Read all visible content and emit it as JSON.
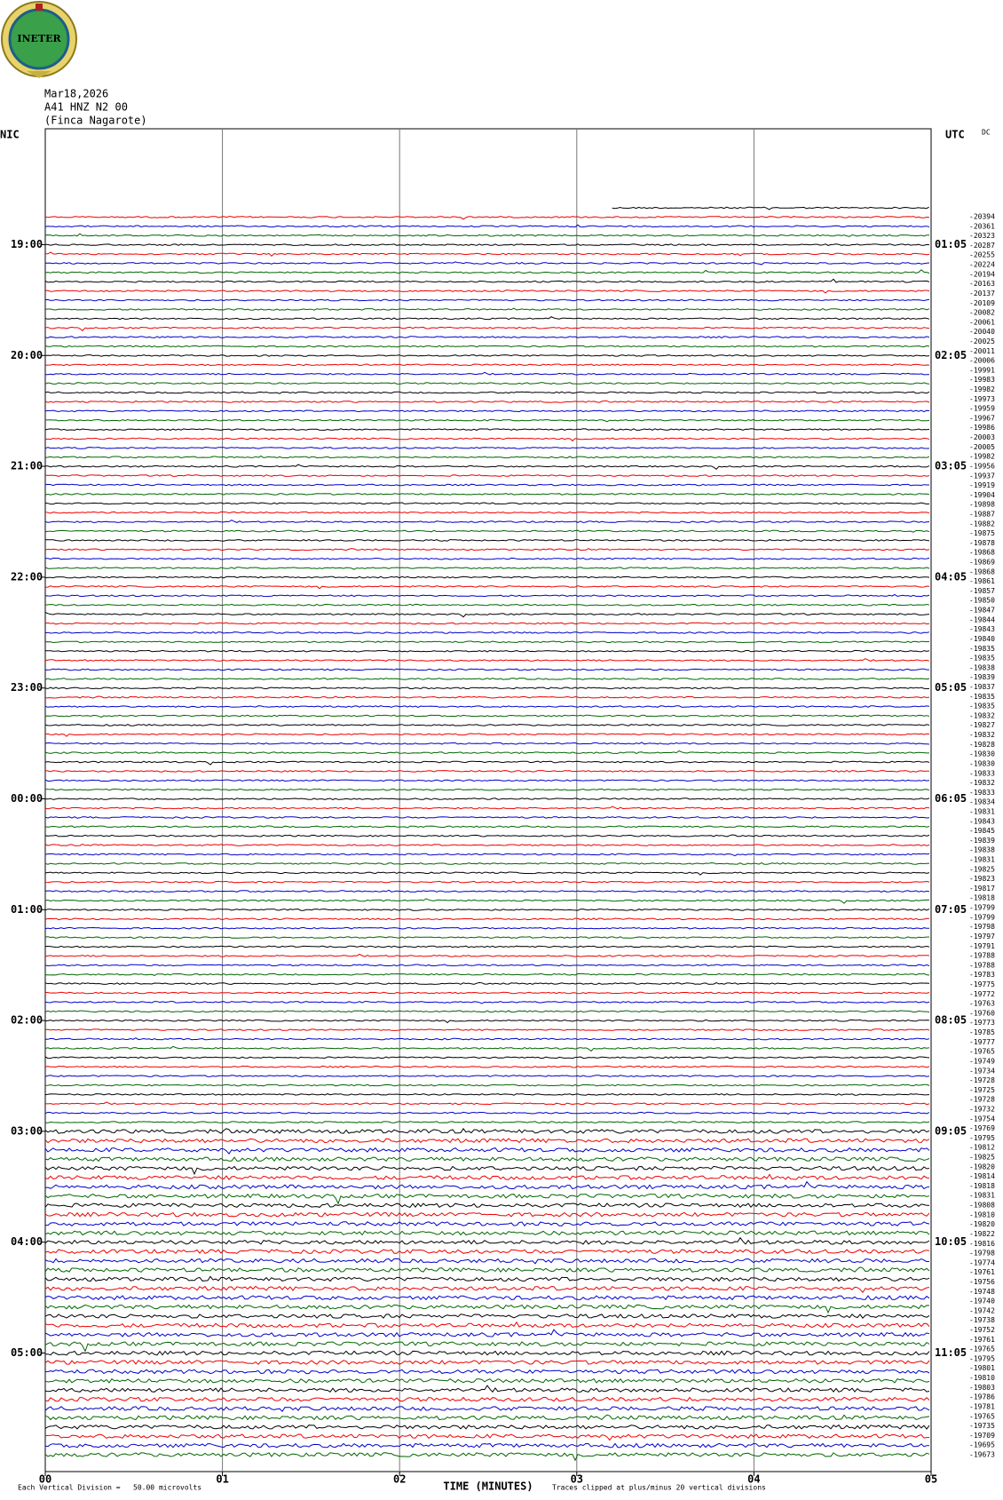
{
  "header": {
    "logo": "INETER",
    "date": "Mar18,2026",
    "station": "A41 HNZ N2 00",
    "location": "(Finca Nagarote)"
  },
  "left_label": "NIC",
  "right_label": "UTC",
  "dc_label": "DC",
  "left_times": [
    "19:00",
    "20:00",
    "21:00",
    "22:00",
    "23:00",
    "00:00",
    "01:00",
    "02:00",
    "03:00",
    "04:00",
    "05:00"
  ],
  "right_times": [
    "01:05",
    "02:05",
    "03:05",
    "04:05",
    "05:05",
    "06:05",
    "07:05",
    "08:05",
    "09:05",
    "10:05",
    "11:05"
  ],
  "x_ticks": [
    "00",
    "01",
    "02",
    "03",
    "04",
    "05"
  ],
  "x_axis_label": "TIME (MINUTES)",
  "footer": {
    "scale": "Each Vertical Division =   50.00 microvolts",
    "clip": "Traces clipped at plus/minus 20 vertical divisions"
  },
  "dc_offsets": [
    "-20394",
    "-20361",
    "-20323",
    "-20287",
    "-20255",
    "-20224",
    "-20194",
    "-20163",
    "-20137",
    "-20109",
    "-20082",
    "-20061",
    "-20040",
    "-20025",
    "-20011",
    "-20006",
    "-19991",
    "-19983",
    "-19982",
    "-19973",
    "-19959",
    "-19967",
    "-19986",
    "-20003",
    "-20005",
    "-19982",
    "-19956",
    "-19937",
    "-19919",
    "-19904",
    "-19898",
    "-19887",
    "-19882",
    "-19875",
    "-19878",
    "-19868",
    "-19869",
    "-19868",
    "-19861",
    "-19857",
    "-19850",
    "-19847",
    "-19844",
    "-19843",
    "-19840",
    "-19835",
    "-19835",
    "-19838",
    "-19839",
    "-19837",
    "-19835",
    "-19835",
    "-19832",
    "-19827",
    "-19832",
    "-19828",
    "-19830",
    "-19830",
    "-19833",
    "-19832",
    "-19833",
    "-19834",
    "-19831",
    "-19843",
    "-19845",
    "-19839",
    "-19838",
    "-19831",
    "-19825",
    "-19823",
    "-19817",
    "-19818",
    "-19799",
    "-19799",
    "-19798",
    "-19797",
    "-19791",
    "-19788",
    "-19788",
    "-19783",
    "-19775",
    "-19772",
    "-19763",
    "-19760",
    "-19773",
    "-19785",
    "-19777",
    "-19765",
    "-19749",
    "-19734",
    "-19728",
    "-19725",
    "-19728",
    "-19732",
    "-19754",
    "-19769",
    "-19795",
    "-19812",
    "-19825",
    "-19820",
    "-19814",
    "-19818",
    "-19831",
    "-19808",
    "-19810",
    "-19820",
    "-19822",
    "-19816",
    "-19798",
    "-19774",
    "-19761",
    "-19756",
    "-19748",
    "-19740",
    "-19742",
    "-19738",
    "-19752",
    "-19761",
    "-19765",
    "-19795",
    "-19801",
    "-19810",
    "-19803",
    "-19786",
    "-19781",
    "-19765",
    "-19735",
    "-19709",
    "-19695",
    "-19673"
  ]
}
